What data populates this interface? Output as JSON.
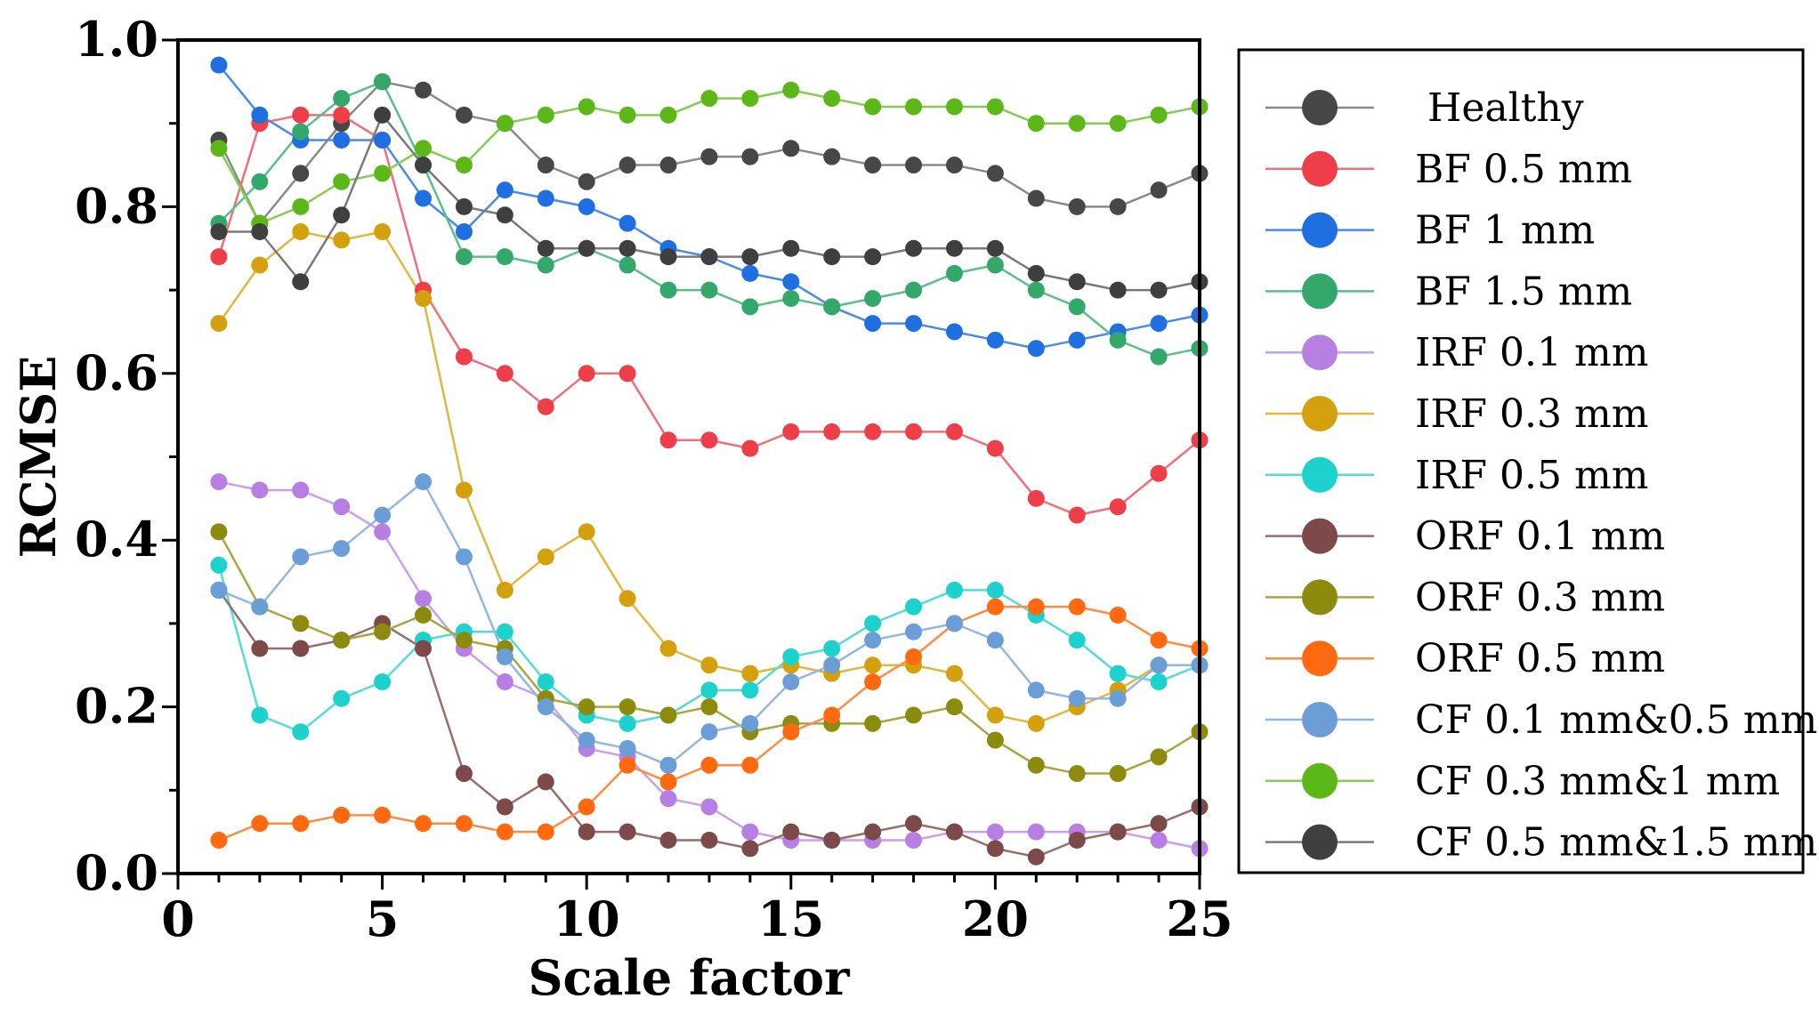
{
  "chart_data": {
    "type": "line",
    "title": "",
    "xlabel": "Scale factor",
    "ylabel": "RCMSE",
    "xlim": [
      0,
      25
    ],
    "ylim": [
      0.0,
      1.0
    ],
    "x_ticks": [
      0,
      5,
      10,
      15,
      20,
      25
    ],
    "y_ticks": [
      0.0,
      0.2,
      0.4,
      0.6,
      0.8,
      1.0
    ],
    "x_tick_labels": [
      "0",
      "5",
      "10",
      "15",
      "20",
      "25"
    ],
    "y_tick_labels": [
      "0.0",
      "0.2",
      "0.4",
      "0.6",
      "0.8",
      "1.0"
    ],
    "grid": false,
    "legend_position": "right",
    "x": [
      1,
      2,
      3,
      4,
      5,
      6,
      7,
      8,
      9,
      10,
      11,
      12,
      13,
      14,
      15,
      16,
      17,
      18,
      19,
      20,
      21,
      22,
      23,
      24,
      25
    ],
    "series": [
      {
        "name": "Healthy",
        "color": "#474747",
        "line_color": "#8a8a8a",
        "values": [
          0.88,
          0.78,
          0.84,
          0.9,
          0.95,
          0.94,
          0.91,
          0.9,
          0.85,
          0.83,
          0.85,
          0.85,
          0.86,
          0.86,
          0.87,
          0.86,
          0.85,
          0.85,
          0.85,
          0.84,
          0.81,
          0.8,
          0.8,
          0.82,
          0.84
        ]
      },
      {
        "name": "BF 0.5 mm",
        "color": "#ee3e4a",
        "line_color": "#f0707a",
        "values": [
          0.74,
          0.9,
          0.91,
          0.91,
          0.88,
          0.7,
          0.62,
          0.6,
          0.56,
          0.6,
          0.6,
          0.52,
          0.52,
          0.51,
          0.53,
          0.53,
          0.53,
          0.53,
          0.53,
          0.51,
          0.45,
          0.43,
          0.44,
          0.48,
          0.52
        ]
      },
      {
        "name": "BF 1 mm",
        "color": "#1f6fe0",
        "line_color": "#4a8ae8",
        "values": [
          0.97,
          0.91,
          0.88,
          0.88,
          0.88,
          0.81,
          0.77,
          0.82,
          0.81,
          0.8,
          0.78,
          0.75,
          0.74,
          0.72,
          0.71,
          0.68,
          0.66,
          0.66,
          0.65,
          0.64,
          0.63,
          0.64,
          0.65,
          0.66,
          0.67
        ]
      },
      {
        "name": "BF 1.5 mm",
        "color": "#33a86a",
        "line_color": "#5cbf88",
        "values": [
          0.78,
          0.83,
          0.89,
          0.93,
          0.95,
          0.85,
          0.74,
          0.74,
          0.73,
          0.75,
          0.73,
          0.7,
          0.7,
          0.68,
          0.69,
          0.68,
          0.69,
          0.7,
          0.72,
          0.73,
          0.7,
          0.68,
          0.64,
          0.62,
          0.63
        ]
      },
      {
        "name": "IRF 0.1 mm",
        "color": "#b77fe4",
        "line_color": "#c9a0ec",
        "values": [
          0.47,
          0.46,
          0.46,
          0.44,
          0.41,
          0.33,
          0.27,
          0.23,
          0.21,
          0.15,
          0.14,
          0.09,
          0.08,
          0.05,
          0.04,
          0.04,
          0.04,
          0.04,
          0.05,
          0.05,
          0.05,
          0.05,
          0.05,
          0.04,
          0.03
        ]
      },
      {
        "name": "IRF 0.3 mm",
        "color": "#d4a00e",
        "line_color": "#e0b840",
        "values": [
          0.66,
          0.73,
          0.77,
          0.76,
          0.77,
          0.69,
          0.46,
          0.34,
          0.38,
          0.41,
          0.33,
          0.27,
          0.25,
          0.24,
          0.25,
          0.24,
          0.25,
          0.25,
          0.24,
          0.19,
          0.18,
          0.2,
          0.22,
          0.25,
          0.25
        ]
      },
      {
        "name": "IRF 0.5 mm",
        "color": "#1dd1cd",
        "line_color": "#55dcd9",
        "values": [
          0.37,
          0.19,
          0.17,
          0.21,
          0.23,
          0.28,
          0.29,
          0.29,
          0.23,
          0.19,
          0.18,
          0.19,
          0.22,
          0.22,
          0.26,
          0.27,
          0.3,
          0.32,
          0.34,
          0.34,
          0.31,
          0.28,
          0.24,
          0.23,
          0.25
        ]
      },
      {
        "name": "ORF 0.1 mm",
        "color": "#7d4a4a",
        "line_color": "#9a6d6d",
        "values": [
          0.34,
          0.27,
          0.27,
          0.28,
          0.3,
          0.27,
          0.12,
          0.08,
          0.11,
          0.05,
          0.05,
          0.04,
          0.04,
          0.03,
          0.05,
          0.04,
          0.05,
          0.06,
          0.05,
          0.03,
          0.02,
          0.04,
          0.05,
          0.06,
          0.08
        ]
      },
      {
        "name": "ORF 0.3 mm",
        "color": "#8d8b0e",
        "line_color": "#a8a640",
        "values": [
          0.41,
          0.32,
          0.3,
          0.28,
          0.29,
          0.31,
          0.28,
          0.27,
          0.21,
          0.2,
          0.2,
          0.19,
          0.2,
          0.17,
          0.18,
          0.18,
          0.18,
          0.19,
          0.2,
          0.16,
          0.13,
          0.12,
          0.12,
          0.14,
          0.17
        ]
      },
      {
        "name": "ORF 0.5 mm",
        "color": "#ff6a10",
        "line_color": "#ff8c45",
        "values": [
          0.04,
          0.06,
          0.06,
          0.07,
          0.07,
          0.06,
          0.06,
          0.05,
          0.05,
          0.08,
          0.13,
          0.11,
          0.13,
          0.13,
          0.17,
          0.19,
          0.23,
          0.26,
          0.3,
          0.32,
          0.32,
          0.32,
          0.31,
          0.28,
          0.27
        ]
      },
      {
        "name": "CF 0.1 mm&0.5 mm",
        "color": "#6b9ed6",
        "line_color": "#92b8e2",
        "values": [
          0.34,
          0.32,
          0.38,
          0.39,
          0.43,
          0.47,
          0.38,
          0.26,
          0.2,
          0.16,
          0.15,
          0.13,
          0.17,
          0.18,
          0.23,
          0.25,
          0.28,
          0.29,
          0.3,
          0.28,
          0.22,
          0.21,
          0.21,
          0.25,
          0.25
        ]
      },
      {
        "name": "CF 0.3 mm&1 mm",
        "color": "#5cb818",
        "line_color": "#86cc52",
        "values": [
          0.87,
          0.78,
          0.8,
          0.83,
          0.84,
          0.87,
          0.85,
          0.9,
          0.91,
          0.92,
          0.91,
          0.91,
          0.93,
          0.93,
          0.94,
          0.93,
          0.92,
          0.92,
          0.92,
          0.92,
          0.9,
          0.9,
          0.9,
          0.91,
          0.92
        ]
      },
      {
        "name": "CF 0.5 mm&1.5 mm",
        "color": "#3f3f3f",
        "line_color": "#7a7a7a",
        "values": [
          0.77,
          0.77,
          0.71,
          0.79,
          0.91,
          0.85,
          0.8,
          0.79,
          0.75,
          0.75,
          0.75,
          0.74,
          0.74,
          0.74,
          0.75,
          0.74,
          0.74,
          0.75,
          0.75,
          0.75,
          0.72,
          0.71,
          0.7,
          0.7,
          0.71
        ]
      }
    ]
  }
}
